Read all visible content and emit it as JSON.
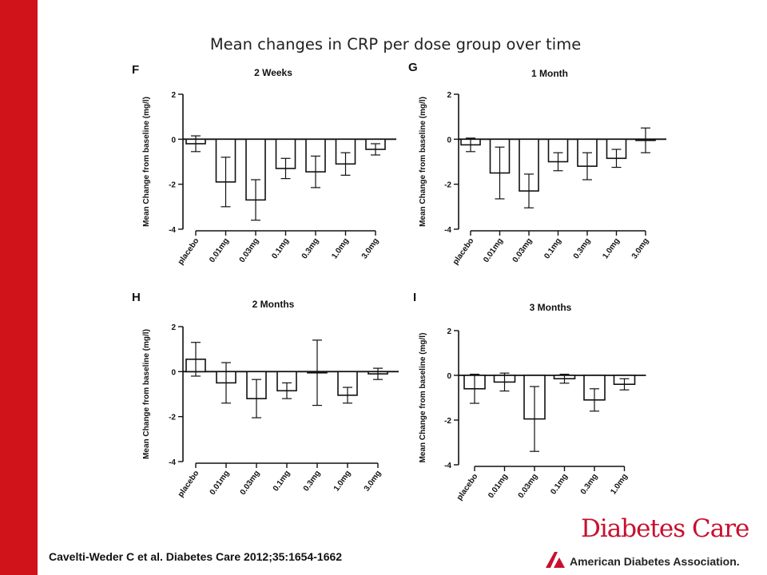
{
  "slide": {
    "title": "Mean changes in CRP per dose group over time",
    "citation": "Cavelti-Weder C et al. Diabetes Care 2012;35:1654-1662",
    "brand": "Diabetes Care",
    "association": "American Diabetes Association."
  },
  "colors": {
    "accent_bar": "#d0121b",
    "brand": "#c8102e",
    "ink": "#111111"
  },
  "chart_data": [
    {
      "type": "bar",
      "panel_letter": "F",
      "title": "2 Weeks",
      "ylabel": "Mean Change from baseline (mg/l)",
      "ylim": [
        -4,
        2
      ],
      "yticks": [
        2,
        0,
        -2,
        -4
      ],
      "categories": [
        "placebo",
        "0.01mg",
        "0.03mg",
        "0.1mg",
        "0.3mg",
        "1.0mg",
        "3.0mg"
      ],
      "values": [
        -0.2,
        -1.9,
        -2.7,
        -1.3,
        -1.45,
        -1.1,
        -0.45
      ],
      "errors": [
        0.35,
        1.1,
        0.9,
        0.45,
        0.7,
        0.5,
        0.25
      ]
    },
    {
      "type": "bar",
      "panel_letter": "G",
      "title": "1 Month",
      "ylabel": "Mean Change from baseline (mg/l)",
      "ylim": [
        -4,
        2
      ],
      "yticks": [
        2,
        0,
        -2,
        -4
      ],
      "categories": [
        "placebo",
        "0.01mg",
        "0.03mg",
        "0.1mg",
        "0.3mg",
        "1.0mg",
        "3.0mg"
      ],
      "values": [
        -0.25,
        -1.5,
        -2.3,
        -1.0,
        -1.2,
        -0.85,
        -0.05
      ],
      "errors": [
        0.3,
        1.15,
        0.75,
        0.4,
        0.6,
        0.4,
        0.55
      ]
    },
    {
      "type": "bar",
      "panel_letter": "H",
      "title": "2 Months",
      "ylabel": "Mean Change from baseline (mg/l)",
      "ylim": [
        -4,
        2
      ],
      "yticks": [
        2,
        0,
        -2,
        -4
      ],
      "categories": [
        "placebo",
        "0.01mg",
        "0.03mg",
        "0.1mg",
        "0.3mg",
        "1.0mg",
        "3.0mg"
      ],
      "values": [
        0.55,
        -0.5,
        -1.2,
        -0.85,
        -0.05,
        -1.05,
        -0.1
      ],
      "errors": [
        0.75,
        0.9,
        0.85,
        0.35,
        1.45,
        0.35,
        0.25
      ]
    },
    {
      "type": "bar",
      "panel_letter": "I",
      "title": "3 Months",
      "ylabel": "Mean Change from baseline (mg/l)",
      "ylim": [
        -4,
        2
      ],
      "yticks": [
        2,
        0,
        -2,
        -4
      ],
      "categories": [
        "placebo",
        "0.01mg",
        "0.03mg",
        "0.1mg",
        "0.3mg",
        "1.0mg"
      ],
      "values": [
        -0.6,
        -0.3,
        -1.95,
        -0.15,
        -1.1,
        -0.4
      ],
      "errors": [
        0.65,
        0.4,
        1.45,
        0.2,
        0.5,
        0.25
      ]
    }
  ]
}
